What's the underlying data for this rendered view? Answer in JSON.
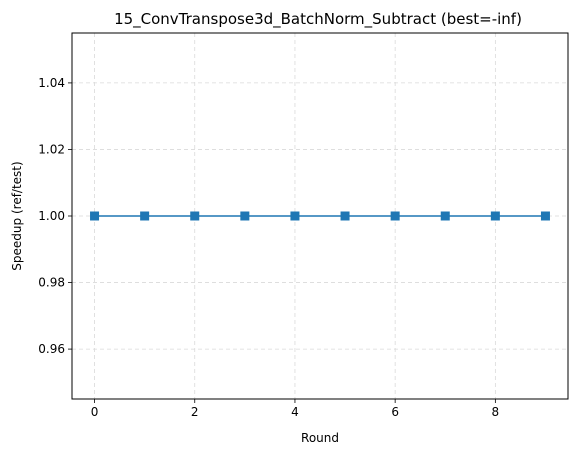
{
  "chart_data": {
    "type": "line",
    "title": "15_ConvTranspose3d_BatchNorm_Subtract (best=-inf)",
    "xlabel": "Round",
    "ylabel": "Speedup (ref/test)",
    "x": [
      0,
      1,
      2,
      3,
      4,
      5,
      6,
      7,
      8,
      9
    ],
    "series": [
      {
        "values": [
          1.0,
          1.0,
          1.0,
          1.0,
          1.0,
          1.0,
          1.0,
          1.0,
          1.0,
          1.0
        ]
      }
    ],
    "xlim": [
      -0.45,
      9.45
    ],
    "ylim": [
      0.945,
      1.055
    ],
    "xticks": [
      "0",
      "2",
      "4",
      "6",
      "8"
    ],
    "xtick_values": [
      0,
      2,
      4,
      6,
      8
    ],
    "yticks": [
      "0.96",
      "0.98",
      "1.00",
      "1.02",
      "1.04"
    ],
    "ytick_values": [
      0.96,
      0.98,
      1.0,
      1.02,
      1.04
    ],
    "grid": true,
    "marker": "square",
    "line_color": "#1f77b4",
    "grid_color": "#d9d9d9"
  }
}
